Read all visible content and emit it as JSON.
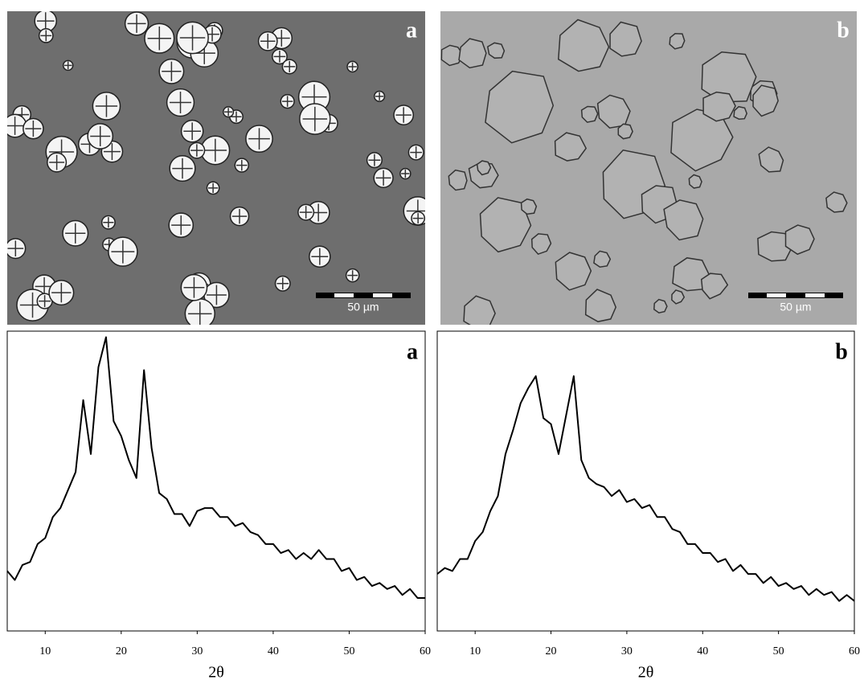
{
  "micrographs": [
    {
      "label": "a",
      "scale_bar": "50 µm"
    },
    {
      "label": "b",
      "scale_bar": "50 µm"
    }
  ],
  "chart_data": [
    {
      "type": "line",
      "panel_label": "a",
      "x_label": "2θ",
      "x": [
        5,
        6,
        7,
        8,
        9,
        10,
        11,
        12,
        13,
        14,
        15,
        16,
        17,
        18,
        19,
        20,
        21,
        22,
        23,
        24,
        25,
        26,
        27,
        28,
        29,
        30,
        31,
        32,
        33,
        34,
        35,
        36,
        37,
        38,
        39,
        40,
        41,
        42,
        43,
        44,
        45,
        46,
        47,
        48,
        49,
        50,
        51,
        52,
        53,
        54,
        55,
        56,
        57,
        58,
        59,
        60
      ],
      "series": [
        {
          "color": "#000000",
          "values": [
            20,
            17,
            22,
            23,
            29,
            31,
            38,
            41,
            47,
            53,
            77,
            59,
            88,
            98,
            70,
            65,
            57,
            51,
            87,
            61,
            46,
            44,
            39,
            39,
            35,
            40,
            41,
            41,
            38,
            38,
            35,
            36,
            33,
            32,
            29,
            29,
            26,
            27,
            24,
            26,
            24,
            27,
            24,
            24,
            20,
            21,
            17,
            18,
            15,
            16,
            14,
            15,
            12,
            14,
            11,
            11
          ]
        }
      ],
      "xlim": [
        5,
        60
      ],
      "xticks": [
        10,
        20,
        30,
        40,
        50,
        60
      ],
      "ylim": [
        0,
        100
      ]
    },
    {
      "type": "line",
      "panel_label": "b",
      "x_label": "2θ",
      "x": [
        5,
        6,
        7,
        8,
        9,
        10,
        11,
        12,
        13,
        14,
        15,
        16,
        17,
        18,
        19,
        20,
        21,
        22,
        23,
        24,
        25,
        26,
        27,
        28,
        29,
        30,
        31,
        32,
        33,
        34,
        35,
        36,
        37,
        38,
        39,
        40,
        41,
        42,
        43,
        44,
        45,
        46,
        47,
        48,
        49,
        50,
        51,
        52,
        53,
        54,
        55,
        56,
        57,
        58,
        59,
        60
      ],
      "series": [
        {
          "color": "#000000",
          "values": [
            19,
            21,
            20,
            24,
            24,
            30,
            33,
            40,
            45,
            59,
            67,
            76,
            81,
            85,
            71,
            69,
            59,
            72,
            85,
            57,
            51,
            49,
            48,
            45,
            47,
            43,
            44,
            41,
            42,
            38,
            38,
            34,
            33,
            29,
            29,
            26,
            26,
            23,
            24,
            20,
            22,
            19,
            19,
            16,
            18,
            15,
            16,
            14,
            15,
            12,
            14,
            12,
            13,
            10,
            12,
            10
          ]
        }
      ],
      "xlim": [
        5,
        60
      ],
      "xticks": [
        10,
        20,
        30,
        40,
        50,
        60
      ],
      "ylim": [
        0,
        100
      ]
    }
  ]
}
